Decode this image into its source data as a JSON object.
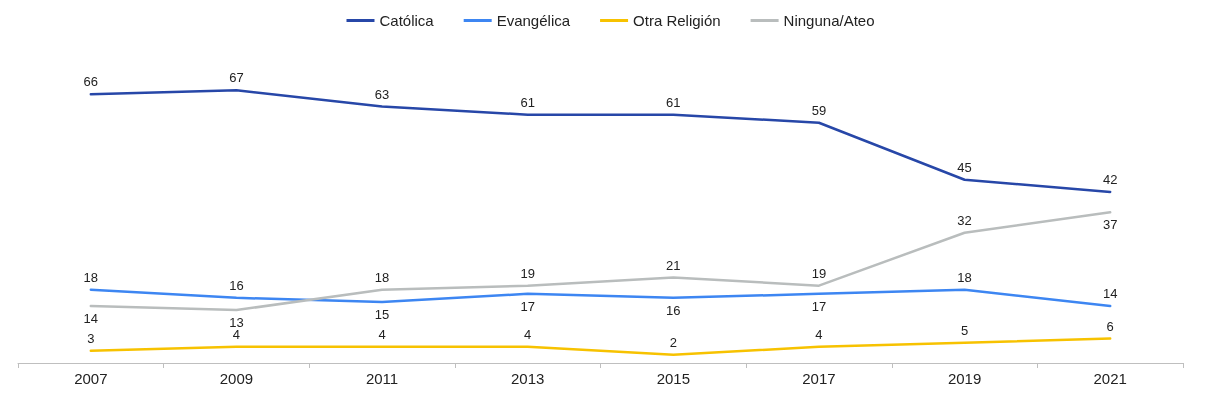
{
  "chart_data": {
    "type": "line",
    "categories": [
      "2007",
      "2009",
      "2011",
      "2013",
      "2015",
      "2017",
      "2019",
      "2021"
    ],
    "series": [
      {
        "name": "Católica",
        "color": "#2747a8",
        "values": [
          66,
          67,
          63,
          61,
          61,
          59,
          45,
          42
        ]
      },
      {
        "name": "Evangélica",
        "color": "#3d86f2",
        "values": [
          18,
          16,
          15,
          17,
          16,
          17,
          18,
          14
        ]
      },
      {
        "name": "Otra Religión",
        "color": "#f7c200",
        "values": [
          3,
          4,
          4,
          4,
          2,
          4,
          5,
          6
        ]
      },
      {
        "name": "Ninguna/Ateo",
        "color": "#b9bdbd",
        "values": [
          14,
          13,
          18,
          19,
          21,
          19,
          32,
          37
        ]
      }
    ],
    "data_labels": true,
    "legend": "top",
    "grid": false,
    "marker": "none"
  }
}
